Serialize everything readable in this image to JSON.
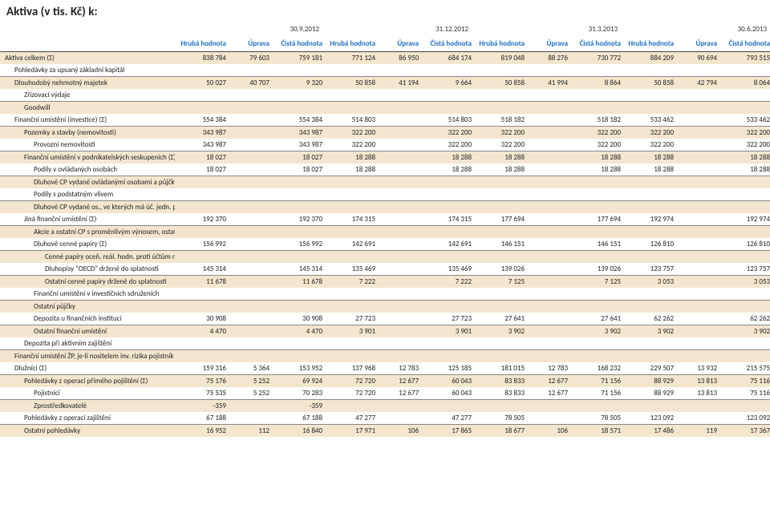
{
  "title": "Aktiva (v tis. Kč) k:",
  "date_headers": [
    "30.9.2012",
    "31.12.2012",
    "31.3.2013",
    "30.6.2013"
  ],
  "triplet": {
    "g": "Hrubá hodnota",
    "u": "Úprava",
    "c": "Čistá hodnota"
  },
  "col_widths": {
    "label": 218,
    "g": 66,
    "u": 54,
    "c": 66
  },
  "rows": [
    {
      "label": "Aktiva celkem (Σ)",
      "ind": 0,
      "band": true,
      "v": [
        "838 784",
        "79 603",
        "759 181",
        "771 124",
        "86 950",
        "684 174",
        "819 048",
        "88 276",
        "730 772",
        "884 209",
        "90 694",
        "793 515"
      ]
    },
    {
      "label": "Pohledávky za upsaný základní kapitál",
      "ind": 1,
      "band": false,
      "v": [
        "",
        "",
        "",
        "",
        "",
        "",
        "",
        "",
        "",
        "",
        "",
        ""
      ]
    },
    {
      "label": "Dlouhodobý nehmotný majetek",
      "ind": 1,
      "band": true,
      "v": [
        "50 027",
        "40 707",
        "9 320",
        "50 858",
        "41 194",
        "9 664",
        "50 858",
        "41 994",
        "8 864",
        "50 858",
        "42 794",
        "8 064"
      ]
    },
    {
      "label": "Zřizovací výdaje",
      "ind": 2,
      "band": false,
      "v": [
        "",
        "",
        "",
        "",
        "",
        "",
        "",
        "",
        "",
        "",
        "",
        ""
      ]
    },
    {
      "label": "Goodwill",
      "ind": 2,
      "band": true,
      "v": [
        "",
        "",
        "",
        "",
        "",
        "",
        "",
        "",
        "",
        "",
        "",
        ""
      ]
    },
    {
      "label": "Finanční umístění (investice) (Σ)",
      "ind": 1,
      "band": false,
      "v": [
        "554 384",
        "",
        "554 384",
        "514 803",
        "",
        "514 803",
        "518 182",
        "",
        "518 182",
        "533 462",
        "",
        "533 462"
      ]
    },
    {
      "label": "Pozemky a stavby (nemovitosti)",
      "ind": 2,
      "band": true,
      "v": [
        "343 987",
        "",
        "343 987",
        "322 200",
        "",
        "322 200",
        "322 200",
        "",
        "322 200",
        "322 200",
        "",
        "322 200"
      ]
    },
    {
      "label": "Provozní nemovitosti",
      "ind": 3,
      "band": false,
      "v": [
        "343 987",
        "",
        "343 987",
        "322 200",
        "",
        "322 200",
        "322 200",
        "",
        "322 200",
        "322 200",
        "",
        "322 200"
      ]
    },
    {
      "label": "Finanční umístění v podnikatelských seskupeních (Σ)",
      "ind": 2,
      "band": true,
      "v": [
        "18 027",
        "",
        "18 027",
        "18 288",
        "",
        "18 288",
        "18 288",
        "",
        "18 288",
        "18 288",
        "",
        "18 288"
      ]
    },
    {
      "label": "Podíly v ovládaných osobách",
      "ind": 3,
      "band": false,
      "v": [
        "18 027",
        "",
        "18 027",
        "18 288",
        "",
        "18 288",
        "18 288",
        "",
        "18 288",
        "18 288",
        "",
        "18 288"
      ]
    },
    {
      "label": "Dluhové CP vydané ovládanými osobami a půjčky těmto osobám",
      "ind": 3,
      "band": true,
      "v": [
        "",
        "",
        "",
        "",
        "",
        "",
        "",
        "",
        "",
        "",
        "",
        ""
      ]
    },
    {
      "label": "Podíly s podstatným vlivem",
      "ind": 3,
      "band": false,
      "v": [
        "",
        "",
        "",
        "",
        "",
        "",
        "",
        "",
        "",
        "",
        "",
        ""
      ]
    },
    {
      "label": "Dluhové CP vydané os., ve kterých má úč. jedn. podst. vliv",
      "ind": 3,
      "band": true,
      "v": [
        "",
        "",
        "",
        "",
        "",
        "",
        "",
        "",
        "",
        "",
        "",
        ""
      ]
    },
    {
      "label": "Jiná finanční umístění (Σ)",
      "ind": 2,
      "band": false,
      "v": [
        "192 370",
        "",
        "192 370",
        "174 315",
        "",
        "174 315",
        "177 694",
        "",
        "177 694",
        "192 974",
        "",
        "192 974"
      ]
    },
    {
      "label": "Akcie a ostatní CP s proměnlivým výnosem, ostatní podíly",
      "ind": 3,
      "band": true,
      "v": [
        "",
        "",
        "",
        "",
        "",
        "",
        "",
        "",
        "",
        "",
        "",
        ""
      ]
    },
    {
      "label": "Dluhové cenné papíry (Σ)",
      "ind": 3,
      "band": false,
      "v": [
        "156 992",
        "",
        "156 992",
        "142 691",
        "",
        "142 691",
        "146 151",
        "",
        "146 151",
        "126 810",
        "",
        "126 810"
      ]
    },
    {
      "label": "Cenné papíry oceň. reál. hodn. proti účtům nákladů a výnosů",
      "ind": 4,
      "band": true,
      "v": [
        "",
        "",
        "",
        "",
        "",
        "",
        "",
        "",
        "",
        "",
        "",
        ""
      ]
    },
    {
      "label": "Dluhopisy \"OECD\" držené do splatnosti",
      "ind": 4,
      "band": false,
      "v": [
        "145 314",
        "",
        "145 314",
        "135 469",
        "",
        "135 469",
        "139 026",
        "",
        "139 026",
        "123 757",
        "",
        "123 757"
      ]
    },
    {
      "label": "Ostatní cenné papíry držené do splatnosti",
      "ind": 4,
      "band": true,
      "v": [
        "11 678",
        "",
        "11 678",
        "7 222",
        "",
        "7 222",
        "7 125",
        "",
        "7 125",
        "3 053",
        "",
        "3 053"
      ]
    },
    {
      "label": "Finanční umístění v investičních sdruženích",
      "ind": 3,
      "band": false,
      "v": [
        "",
        "",
        "",
        "",
        "",
        "",
        "",
        "",
        "",
        "",
        "",
        ""
      ]
    },
    {
      "label": "Ostatní půjčky",
      "ind": 3,
      "band": true,
      "v": [
        "",
        "",
        "",
        "",
        "",
        "",
        "",
        "",
        "",
        "",
        "",
        ""
      ]
    },
    {
      "label": "Depozita u finančních institucí",
      "ind": 3,
      "band": false,
      "v": [
        "30 908",
        "",
        "30 908",
        "27 723",
        "",
        "27 723",
        "27 641",
        "",
        "27 641",
        "62 262",
        "",
        "62 262"
      ]
    },
    {
      "label": "Ostatní finanční umístění",
      "ind": 3,
      "band": true,
      "v": [
        "4 470",
        "",
        "4 470",
        "3 901",
        "",
        "3 901",
        "3 902",
        "",
        "3 902",
        "3 902",
        "",
        "3 902"
      ]
    },
    {
      "label": "Depozita při aktivním zajištění",
      "ind": 2,
      "band": false,
      "v": [
        "",
        "",
        "",
        "",
        "",
        "",
        "",
        "",
        "",
        "",
        "",
        ""
      ]
    },
    {
      "label": "Finanční umístění ŽP, je-li nositelem inv. rizika pojistník",
      "ind": 1,
      "band": true,
      "v": [
        "",
        "",
        "",
        "",
        "",
        "",
        "",
        "",
        "",
        "",
        "",
        ""
      ]
    },
    {
      "label": "Dlužníci (Σ)",
      "ind": 1,
      "band": false,
      "v": [
        "159 316",
        "5 364",
        "153 952",
        "137 968",
        "12 783",
        "125 185",
        "181 015",
        "12 783",
        "168 232",
        "229 507",
        "13 932",
        "215 575"
      ]
    },
    {
      "label": "Pohledávky z operací přímého pojištění (Σ)",
      "ind": 2,
      "band": true,
      "v": [
        "75 176",
        "5 252",
        "69 924",
        "72 720",
        "12 677",
        "60 043",
        "83 833",
        "12 677",
        "71 156",
        "88 929",
        "13 813",
        "75 116"
      ]
    },
    {
      "label": "Pojistníci",
      "ind": 3,
      "band": false,
      "v": [
        "75 535",
        "5 252",
        "70 283",
        "72 720",
        "12 677",
        "60 043",
        "83 833",
        "12 677",
        "71 156",
        "88 929",
        "13 813",
        "75 116"
      ]
    },
    {
      "label": "Zprostředkovatelé",
      "ind": 3,
      "band": true,
      "v": [
        "-359",
        "",
        "-359",
        "",
        "",
        "",
        "",
        "",
        "",
        "",
        "",
        ""
      ]
    },
    {
      "label": "Pohledávky z operací zajištění",
      "ind": 2,
      "band": false,
      "v": [
        "67 188",
        "",
        "67 188",
        "47 277",
        "",
        "47 277",
        "78 505",
        "",
        "78 505",
        "123 092",
        "",
        "123 092"
      ]
    },
    {
      "label": "Ostatní pohledávky",
      "ind": 2,
      "band": true,
      "v": [
        "16 952",
        "112",
        "16 840",
        "17 971",
        "106",
        "17 865",
        "18 677",
        "106",
        "18 571",
        "17 486",
        "119",
        "17 367"
      ]
    }
  ],
  "style": {
    "band_color": "#f4e6ce",
    "header_color": "#1f6fc0",
    "row_border": "#888",
    "title_size": 15,
    "cell_size": 9
  }
}
